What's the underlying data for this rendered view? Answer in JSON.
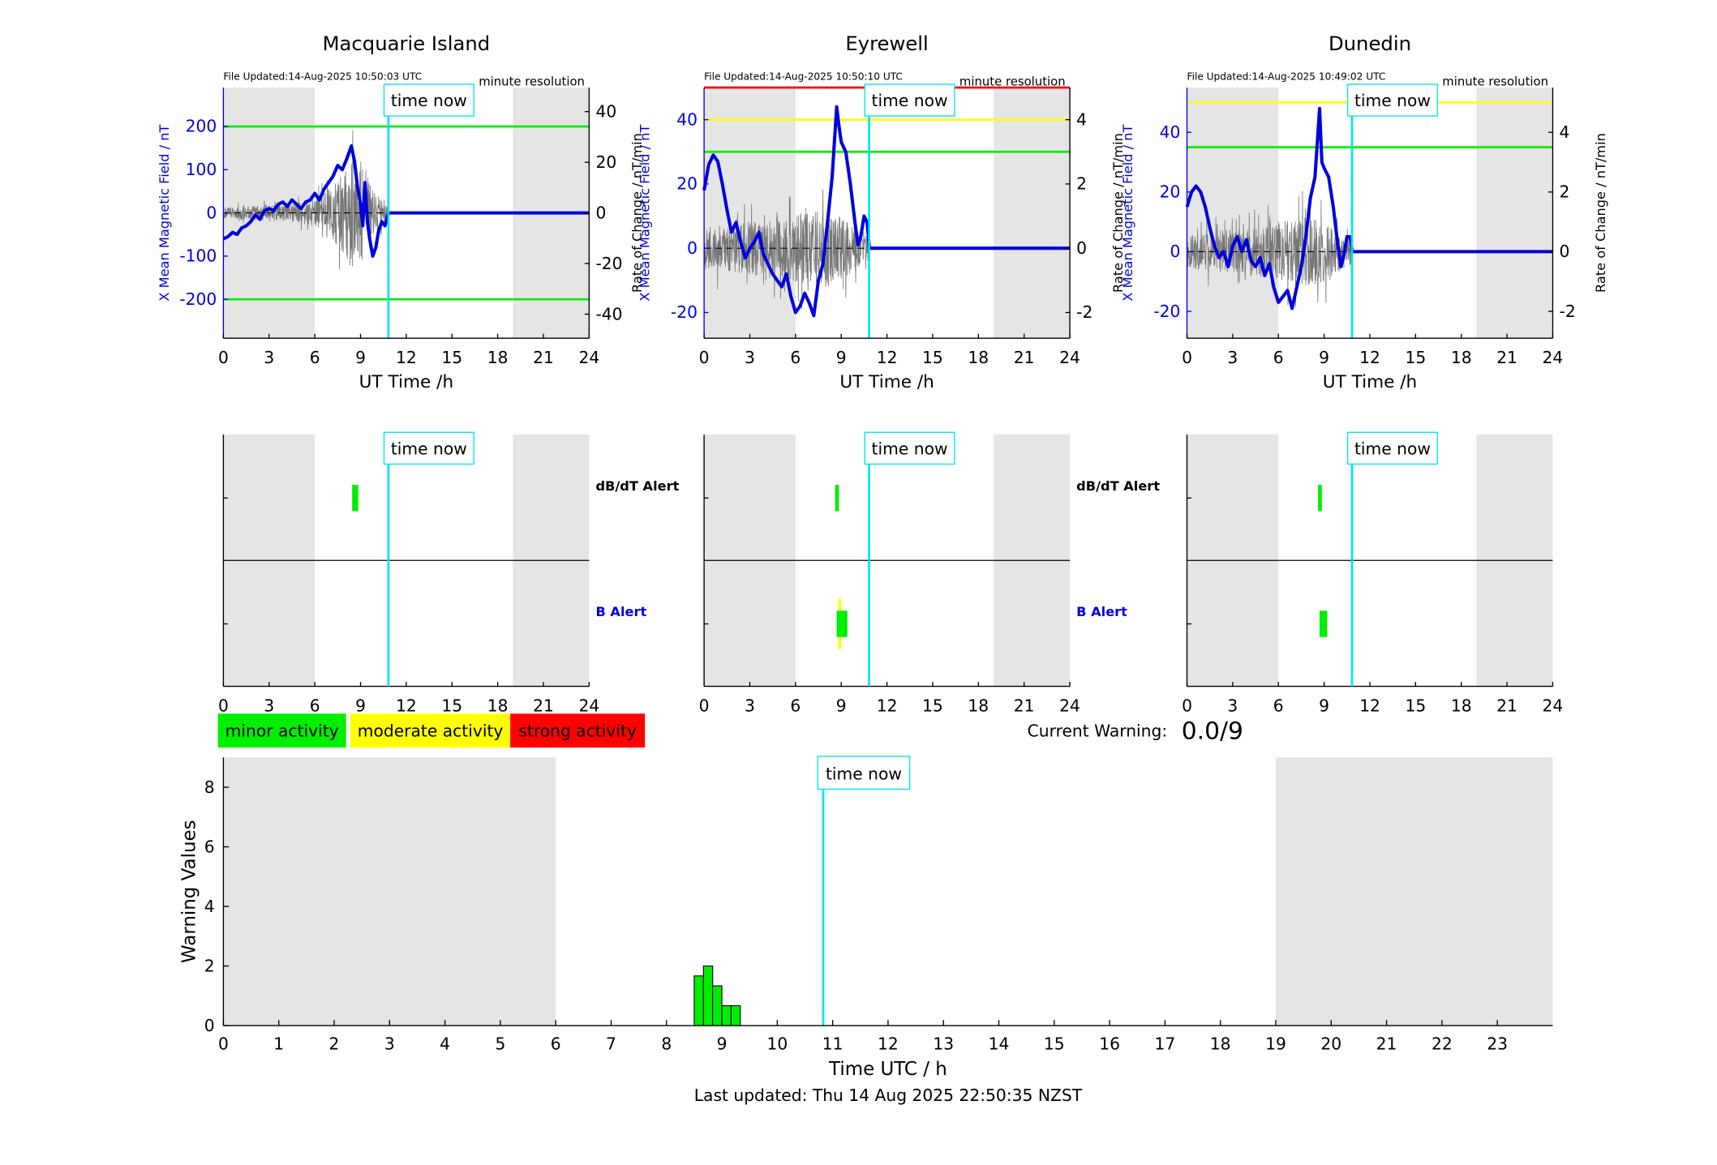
{
  "stations": [
    {
      "name": "Macquarie Island",
      "file_updated": "File Updated:14-Aug-2025 10:50:03 UTC",
      "resolution": "minute resolution",
      "time_now_label": "time now",
      "xlabel": "UT Time /h",
      "ylabel_left": "X Mean Magnetic Field / nT",
      "ylabel_right": "Rate of Change / nT/min",
      "left_ylim": [
        -290,
        290
      ],
      "left_ticks": [
        -200,
        -100,
        0,
        100,
        200
      ],
      "right_ylim": [
        -49.5,
        49.5
      ],
      "right_ticks": [
        -40,
        -20,
        0,
        20,
        40
      ],
      "thresholds": [
        {
          "value": 200,
          "color": "#00ee00"
        },
        {
          "value": -200,
          "color": "#00ee00"
        }
      ],
      "field_series": [
        [
          0,
          -60
        ],
        [
          0.3,
          -55
        ],
        [
          0.6,
          -45
        ],
        [
          0.9,
          -50
        ],
        [
          1.2,
          -35
        ],
        [
          1.5,
          -30
        ],
        [
          1.8,
          -20
        ],
        [
          2.1,
          -5
        ],
        [
          2.4,
          -15
        ],
        [
          2.7,
          5
        ],
        [
          3,
          10
        ],
        [
          3.3,
          5
        ],
        [
          3.6,
          20
        ],
        [
          3.9,
          25
        ],
        [
          4.2,
          15
        ],
        [
          4.5,
          30
        ],
        [
          4.8,
          20
        ],
        [
          5.1,
          10
        ],
        [
          5.4,
          25
        ],
        [
          5.7,
          30
        ],
        [
          6,
          45
        ],
        [
          6.3,
          30
        ],
        [
          6.6,
          55
        ],
        [
          6.9,
          70
        ],
        [
          7.2,
          85
        ],
        [
          7.5,
          110
        ],
        [
          7.8,
          100
        ],
        [
          8.1,
          125
        ],
        [
          8.4,
          155
        ],
        [
          8.6,
          120
        ],
        [
          8.8,
          60
        ],
        [
          9,
          20
        ],
        [
          9.15,
          -30
        ],
        [
          9.3,
          70
        ],
        [
          9.45,
          -20
        ],
        [
          9.6,
          -60
        ],
        [
          9.8,
          -100
        ],
        [
          10,
          -80
        ],
        [
          10.2,
          -40
        ],
        [
          10.4,
          -20
        ],
        [
          10.6,
          -30
        ],
        [
          10.8,
          -5
        ],
        [
          10.85,
          0
        ],
        [
          24,
          0
        ]
      ],
      "rate_amplitude": [
        [
          0,
          4
        ],
        [
          3,
          6
        ],
        [
          5,
          8
        ],
        [
          6,
          10
        ],
        [
          7,
          18
        ],
        [
          8,
          30
        ],
        [
          8.6,
          46
        ],
        [
          9,
          40
        ],
        [
          9.5,
          25
        ],
        [
          10,
          15
        ],
        [
          10.8,
          8
        ]
      ],
      "alert_db": [
        [
          8.45,
          8.85,
          "#00ee00"
        ]
      ],
      "alert_b": [],
      "b_alert_label": "B Alert",
      "db_alert_label": "dB/dT Alert"
    },
    {
      "name": "Eyrewell",
      "file_updated": "File Updated:14-Aug-2025 10:50:10 UTC",
      "resolution": "minute resolution",
      "time_now_label": "time now",
      "xlabel": "UT Time /h",
      "ylabel_left": "X Mean Magnetic Field / nT",
      "ylabel_right": "Rate of Change / nT/min",
      "left_ylim": [
        -28,
        50
      ],
      "left_ticks": [
        -20,
        0,
        20,
        40
      ],
      "right_ylim": [
        -2.8,
        5.0
      ],
      "right_ticks": [
        -2,
        0,
        2,
        4
      ],
      "thresholds": [
        {
          "value": 50,
          "color": "#ff0000"
        },
        {
          "value": 40,
          "color": "#ffff00"
        },
        {
          "value": 30,
          "color": "#00ee00"
        }
      ],
      "field_series": [
        [
          0,
          18
        ],
        [
          0.3,
          26
        ],
        [
          0.6,
          29
        ],
        [
          0.9,
          27
        ],
        [
          1.2,
          20
        ],
        [
          1.5,
          12
        ],
        [
          1.8,
          5
        ],
        [
          2.1,
          8
        ],
        [
          2.4,
          2
        ],
        [
          2.7,
          -3
        ],
        [
          3,
          0
        ],
        [
          3.3,
          2
        ],
        [
          3.6,
          5
        ],
        [
          3.9,
          -2
        ],
        [
          4.2,
          -5
        ],
        [
          4.5,
          -8
        ],
        [
          4.8,
          -10
        ],
        [
          5.1,
          -12
        ],
        [
          5.4,
          -8
        ],
        [
          5.7,
          -15
        ],
        [
          6,
          -20
        ],
        [
          6.3,
          -18
        ],
        [
          6.6,
          -14
        ],
        [
          6.9,
          -17
        ],
        [
          7.2,
          -21
        ],
        [
          7.5,
          -10
        ],
        [
          7.8,
          -5
        ],
        [
          8.1,
          8
        ],
        [
          8.4,
          22
        ],
        [
          8.7,
          44
        ],
        [
          8.85,
          38
        ],
        [
          9,
          33
        ],
        [
          9.3,
          30
        ],
        [
          9.6,
          20
        ],
        [
          9.9,
          8
        ],
        [
          10.1,
          1
        ],
        [
          10.3,
          4
        ],
        [
          10.5,
          10
        ],
        [
          10.7,
          8
        ],
        [
          10.85,
          0
        ],
        [
          24,
          0
        ]
      ],
      "rate_amplitude": [
        [
          0,
          1.2
        ],
        [
          3,
          1.5
        ],
        [
          5,
          1.8
        ],
        [
          6,
          1.9
        ],
        [
          7,
          2
        ],
        [
          8,
          2.2
        ],
        [
          9,
          1.8
        ],
        [
          10,
          1.2
        ],
        [
          10.8,
          0.8
        ]
      ],
      "alert_db": [
        [
          8.6,
          8.85,
          "#00ee00"
        ]
      ],
      "alert_b": [
        [
          8.8,
          9.0,
          "#ffff00"
        ],
        [
          8.7,
          9.4,
          "#00ee00"
        ]
      ],
      "b_alert_label": "B Alert",
      "db_alert_label": "dB/dT Alert"
    },
    {
      "name": "Dunedin",
      "file_updated": "File Updated:14-Aug-2025 10:49:02 UTC",
      "resolution": "minute resolution",
      "time_now_label": "time now",
      "xlabel": "UT Time /h",
      "ylabel_left": "X Mean Magnetic Field / nT",
      "ylabel_right": "Rate of Change / nT/min",
      "left_ylim": [
        -29,
        55
      ],
      "left_ticks": [
        -20,
        0,
        20,
        40
      ],
      "right_ylim": [
        -2.9,
        5.5
      ],
      "right_ticks": [
        -2,
        0,
        2,
        4
      ],
      "thresholds": [
        {
          "value": 50,
          "color": "#ffff00"
        },
        {
          "value": 35,
          "color": "#00ee00"
        }
      ],
      "field_series": [
        [
          0,
          15
        ],
        [
          0.3,
          20
        ],
        [
          0.6,
          22
        ],
        [
          0.9,
          20
        ],
        [
          1.2,
          15
        ],
        [
          1.5,
          8
        ],
        [
          1.8,
          2
        ],
        [
          2.1,
          -2
        ],
        [
          2.4,
          0
        ],
        [
          2.7,
          -5
        ],
        [
          3,
          2
        ],
        [
          3.3,
          5
        ],
        [
          3.6,
          0
        ],
        [
          3.9,
          4
        ],
        [
          4.2,
          -3
        ],
        [
          4.5,
          -5
        ],
        [
          4.8,
          -2
        ],
        [
          5.1,
          -8
        ],
        [
          5.4,
          -4
        ],
        [
          5.7,
          -12
        ],
        [
          6,
          -17
        ],
        [
          6.3,
          -15
        ],
        [
          6.6,
          -13
        ],
        [
          6.9,
          -19
        ],
        [
          7.2,
          -12
        ],
        [
          7.5,
          -5
        ],
        [
          7.8,
          5
        ],
        [
          8.1,
          18
        ],
        [
          8.4,
          25
        ],
        [
          8.7,
          48
        ],
        [
          8.85,
          30
        ],
        [
          9,
          28
        ],
        [
          9.3,
          25
        ],
        [
          9.6,
          15
        ],
        [
          9.9,
          2
        ],
        [
          10.1,
          -5
        ],
        [
          10.3,
          -1
        ],
        [
          10.5,
          5
        ],
        [
          10.7,
          5
        ],
        [
          10.85,
          0
        ],
        [
          24,
          0
        ]
      ],
      "rate_amplitude": [
        [
          0,
          1
        ],
        [
          3,
          1.4
        ],
        [
          5,
          1.6
        ],
        [
          6,
          1.8
        ],
        [
          7,
          2
        ],
        [
          8,
          2.2
        ],
        [
          9,
          1.8
        ],
        [
          10,
          1.2
        ],
        [
          10.8,
          0.8
        ]
      ],
      "alert_db": [
        [
          8.6,
          8.85,
          "#00ee00"
        ]
      ],
      "alert_b": [
        [
          8.7,
          9.2,
          "#00ee00"
        ]
      ],
      "b_alert_label": "B Alert",
      "db_alert_label": "dB/dT Alert"
    }
  ],
  "legend": {
    "minor": "minor activity",
    "moderate": "moderate activity",
    "strong": "strong activity"
  },
  "current_warning": {
    "label": "Current Warning:",
    "value": "0.0/9"
  },
  "warning_chart": {
    "ylabel": "Warning Values",
    "xlabel": "Time UTC / h",
    "time_now_label": "time now",
    "ylim": [
      0,
      9
    ],
    "yticks": [
      0,
      2,
      4,
      6,
      8
    ],
    "xticks": [
      0,
      1,
      2,
      3,
      4,
      5,
      6,
      7,
      8,
      9,
      10,
      11,
      12,
      13,
      14,
      15,
      16,
      17,
      18,
      19,
      20,
      21,
      22,
      23
    ],
    "now_hour": 10.83,
    "night_bands": [
      [
        0,
        6
      ],
      [
        19,
        24
      ]
    ],
    "bars": [
      [
        8.5,
        1.667
      ],
      [
        8.667,
        2.0
      ],
      [
        8.833,
        1.333
      ],
      [
        9.0,
        0.667
      ],
      [
        9.167,
        0.667
      ]
    ],
    "bar_width": 0.1667,
    "bar_color": "#00ee00"
  },
  "last_updated": "Last updated: Thu 14 Aug 2025 22:50:35 NZST",
  "chart_data": [
    {
      "type": "line",
      "title": "Macquarie Island",
      "xlabel": "UT Time /h",
      "ylabel": "X Mean Magnetic Field / nT",
      "xlim": [
        0,
        24
      ],
      "ylim": [
        -290,
        290
      ]
    },
    {
      "type": "line",
      "title": "Eyrewell",
      "xlabel": "UT Time /h",
      "ylabel": "X Mean Magnetic Field / nT",
      "xlim": [
        0,
        24
      ],
      "ylim": [
        -28,
        50
      ]
    },
    {
      "type": "line",
      "title": "Dunedin",
      "xlabel": "UT Time /h",
      "ylabel": "X Mean Magnetic Field / nT",
      "xlim": [
        0,
        24
      ],
      "ylim": [
        -29,
        55
      ]
    },
    {
      "type": "bar",
      "xlabel": "Time UTC / h",
      "ylabel": "Warning Values",
      "x": [
        8.5,
        8.667,
        8.833,
        9.0,
        9.167
      ],
      "values": [
        1.667,
        2.0,
        1.333,
        0.667,
        0.667
      ],
      "ylim": [
        0,
        9
      ],
      "xlim": [
        0,
        24
      ]
    }
  ]
}
